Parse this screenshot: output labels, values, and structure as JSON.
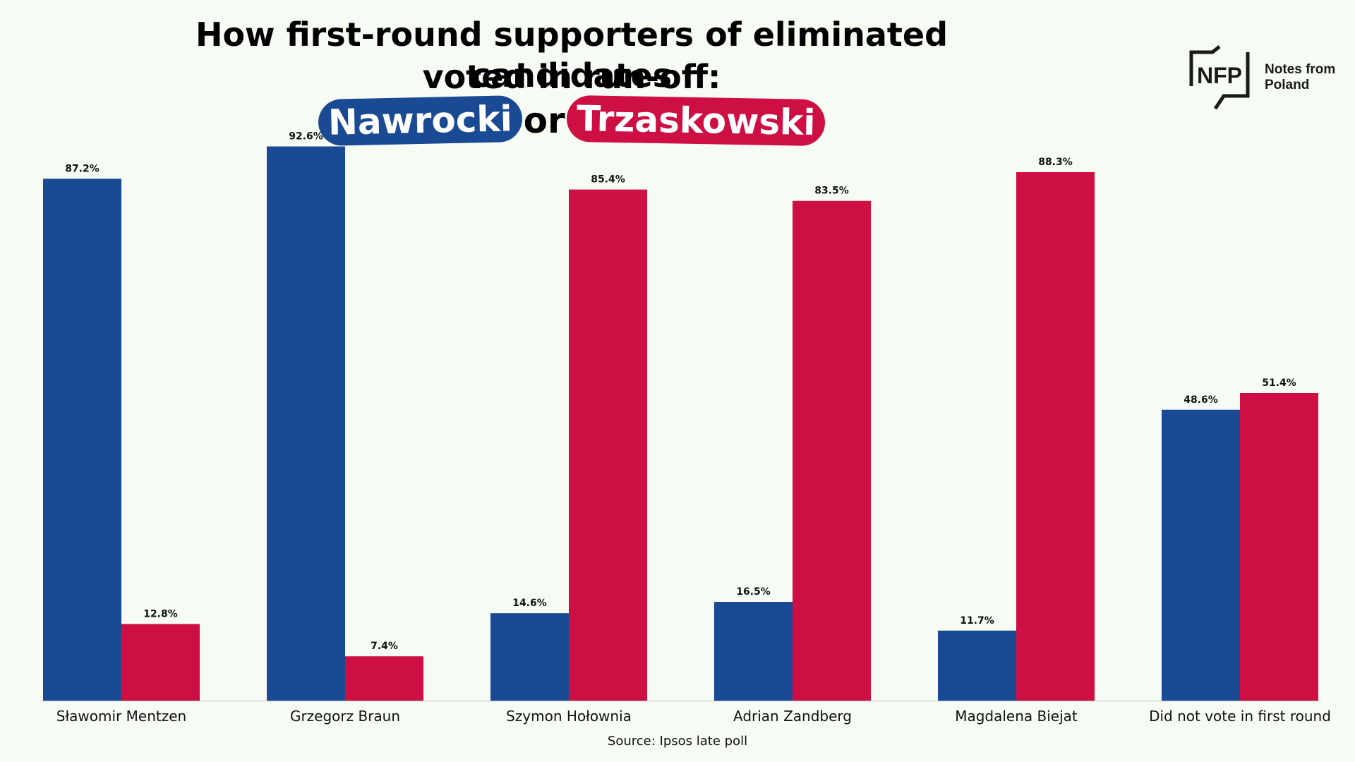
{
  "chart_data": {
    "type": "bar",
    "title_line1": "How first-round supporters of eliminated candidates",
    "title_line2": "voted in run-off:",
    "legend_connector": "or",
    "categories": [
      "Sławomir Mentzen",
      "Grzegorz Braun",
      "Szymon Hołownia",
      "Adrian Zandberg",
      "Magdalena Biejat",
      "Did not vote in first round"
    ],
    "series": [
      {
        "name": "Nawrocki",
        "color": "#1a4a94",
        "values": [
          87.2,
          92.6,
          14.6,
          16.5,
          11.7,
          48.6
        ],
        "labels": [
          "87.2%",
          "92.6%",
          "14.6%",
          "16.5%",
          "11.7%",
          "48.6%"
        ]
      },
      {
        "name": "Trzaskowski",
        "color": "#cd0f44",
        "values": [
          12.8,
          7.4,
          85.4,
          83.5,
          88.3,
          51.4
        ],
        "labels": [
          "12.8%",
          "7.4%",
          "85.4%",
          "83.5%",
          "88.3%",
          "51.4%"
        ]
      }
    ],
    "ylim": [
      0,
      100
    ],
    "grid": false,
    "legend_placement": "title",
    "source": "Source: Ipsos late poll"
  },
  "logo": {
    "mark": "NFP",
    "line1": "Notes from",
    "line2": "Poland",
    "icon": "nfp-logo-icon"
  }
}
